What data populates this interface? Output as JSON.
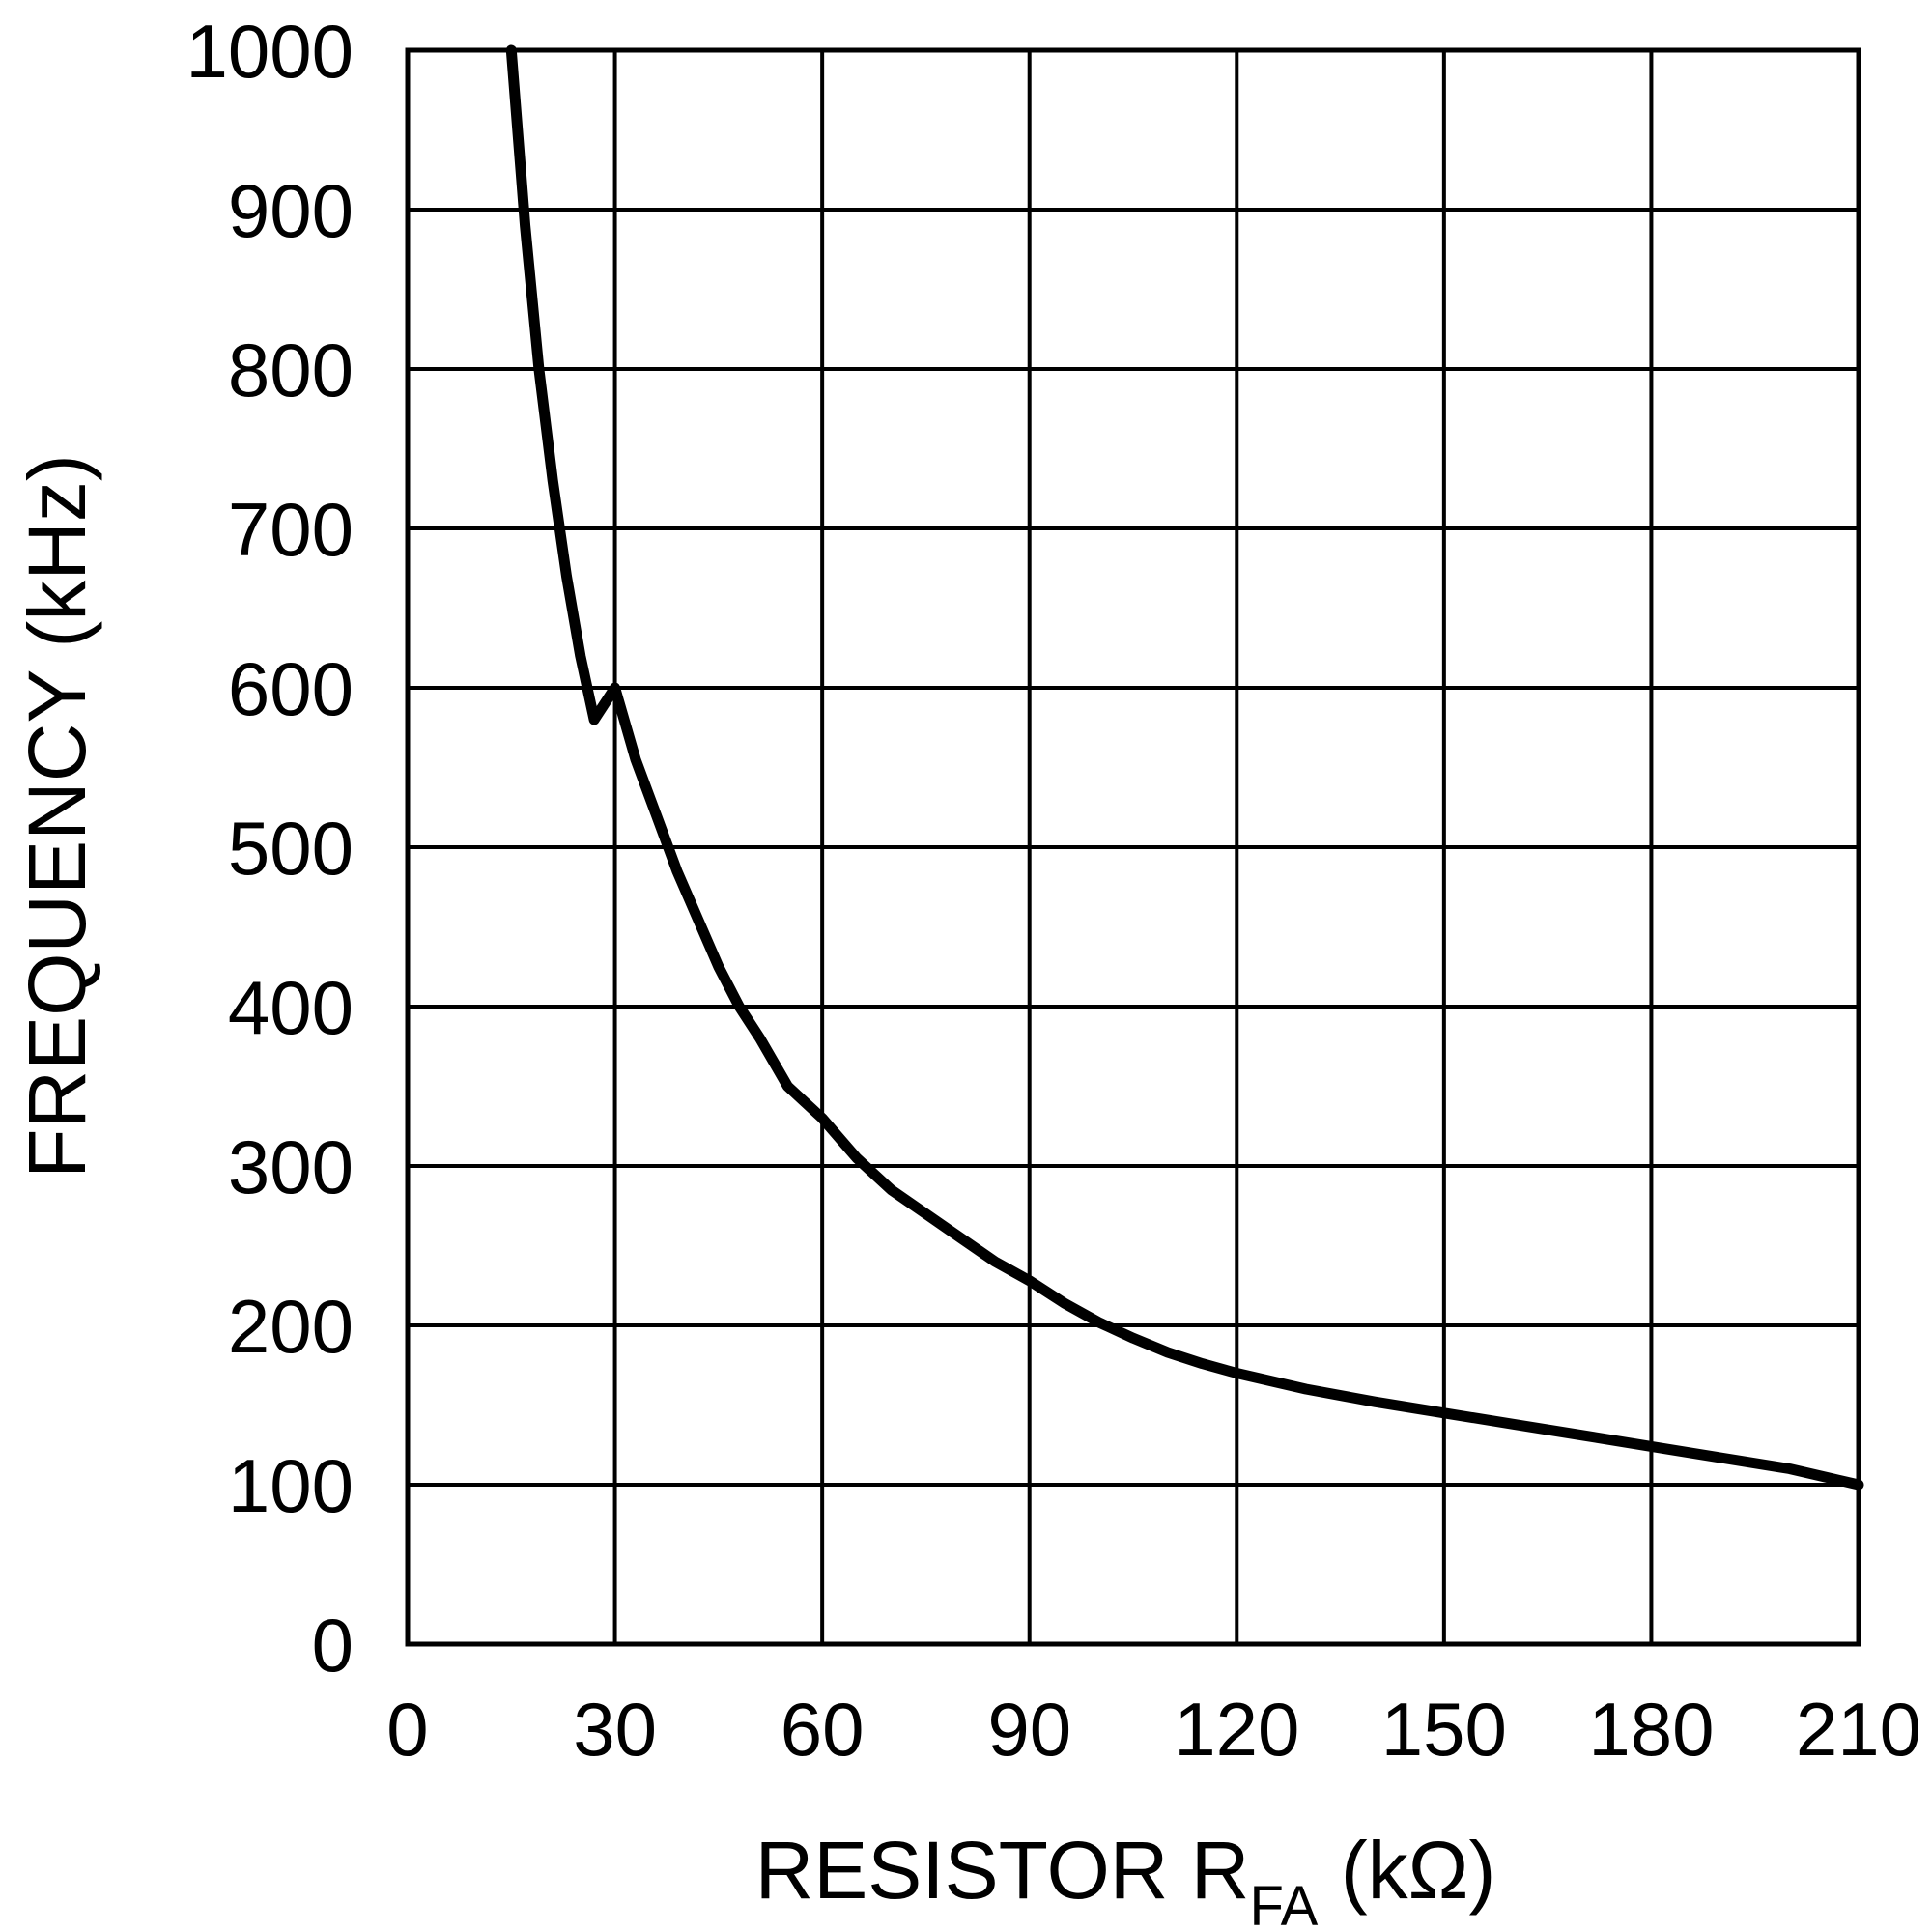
{
  "chart_data": {
    "type": "line",
    "title": "",
    "xlabel": {
      "main": "RESISTOR R",
      "subscript": "FA",
      "unit": " (kΩ)"
    },
    "ylabel": "FREQUENCY (kHz)",
    "xlim": [
      0,
      210
    ],
    "ylim": [
      0,
      1000
    ],
    "xticks": [
      0,
      30,
      60,
      90,
      120,
      150,
      180,
      210
    ],
    "xtick_labels": [
      "0",
      "30",
      "60",
      "90",
      "120",
      "150",
      "180",
      "210"
    ],
    "yticks": [
      0,
      100,
      200,
      300,
      400,
      500,
      600,
      700,
      800,
      900,
      1000
    ],
    "ytick_labels": [
      "0",
      "100",
      "200",
      "300",
      "400",
      "500",
      "600",
      "700",
      "800",
      "900",
      "1000"
    ],
    "grid": true,
    "series": [
      {
        "name": "frequency",
        "color": "#000000",
        "x": [
          15,
          17,
          19,
          21,
          23,
          25,
          27,
          30,
          33,
          36,
          39,
          42,
          45,
          48,
          51,
          55,
          60,
          65,
          70,
          75,
          80,
          85,
          90,
          95,
          100,
          105,
          110,
          115,
          120,
          130,
          140,
          150,
          160,
          170,
          180,
          190,
          200,
          210
        ],
        "y": [
          1000,
          890,
          800,
          730,
          670,
          620,
          580,
          600,
          555,
          520,
          485,
          455,
          425,
          400,
          380,
          350,
          330,
          305,
          285,
          270,
          255,
          240,
          228,
          214,
          202,
          192,
          183,
          176,
          170,
          160,
          152,
          145,
          138,
          131,
          124,
          117,
          110,
          100
        ]
      }
    ]
  }
}
